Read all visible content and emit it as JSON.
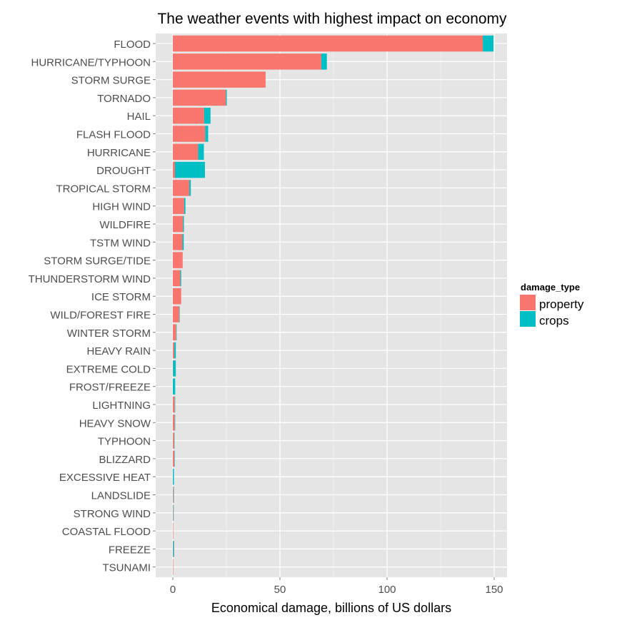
{
  "chart_data": {
    "type": "bar",
    "orientation": "horizontal",
    "stacked": true,
    "title": "The weather events with highest impact on economy",
    "xlabel": "Economical damage, billions of US dollars",
    "ylabel": "",
    "xlim": [
      0,
      155
    ],
    "xticks": [
      "0",
      "50",
      "100",
      "150"
    ],
    "xtick_values": [
      0,
      50,
      100,
      150
    ],
    "grid": true,
    "legend": {
      "title": "damage_type",
      "placement": "right",
      "entries": [
        "property",
        "crops"
      ]
    },
    "categories": [
      "FLOOD",
      "HURRICANE/TYPHOON",
      "STORM SURGE",
      "TORNADO",
      "HAIL",
      "FLASH FLOOD",
      "HURRICANE",
      "DROUGHT",
      "TROPICAL STORM",
      "HIGH WIND",
      "WILDFIRE",
      "TSTM WIND",
      "STORM SURGE/TIDE",
      "THUNDERSTORM WIND",
      "ICE STORM",
      "WILD/FOREST FIRE",
      "WINTER STORM",
      "HEAVY RAIN",
      "EXTREME COLD",
      "FROST/FREEZE",
      "LIGHTNING",
      "HEAVY SNOW",
      "TYPHOON",
      "BLIZZARD",
      "EXCESSIVE HEAT",
      "LANDSLIDE",
      "STRONG WIND",
      "COASTAL FLOOD",
      "FREEZE",
      "TSUNAMI"
    ],
    "series": [
      {
        "name": "property",
        "color": "#F8766D",
        "values": [
          144.7,
          69.3,
          43.3,
          24.8,
          14.6,
          15.1,
          11.8,
          1.0,
          7.7,
          5.3,
          4.8,
          4.5,
          4.6,
          3.5,
          3.9,
          3.0,
          1.6,
          0.7,
          0.1,
          0.01,
          0.9,
          0.9,
          0.6,
          0.7,
          0.01,
          0.3,
          0.2,
          0.2,
          0.2,
          0.1
        ]
      },
      {
        "name": "crops",
        "color": "#00BFC4",
        "values": [
          5.0,
          2.6,
          0.0,
          0.4,
          3.0,
          1.4,
          2.7,
          14.0,
          0.7,
          0.6,
          0.4,
          0.6,
          0.0,
          0.4,
          0.0,
          0.1,
          0.03,
          0.7,
          1.3,
          1.1,
          0.01,
          0.1,
          0.01,
          0.1,
          0.5,
          0.02,
          0.06,
          0.0,
          0.4,
          0.0
        ]
      }
    ]
  },
  "colors": {
    "panel_background": "#E5E5E5",
    "gridline": "#FFFFFF",
    "property": "#F8766D",
    "crops": "#00BFC4",
    "axis_text": "#4D4D4D"
  }
}
